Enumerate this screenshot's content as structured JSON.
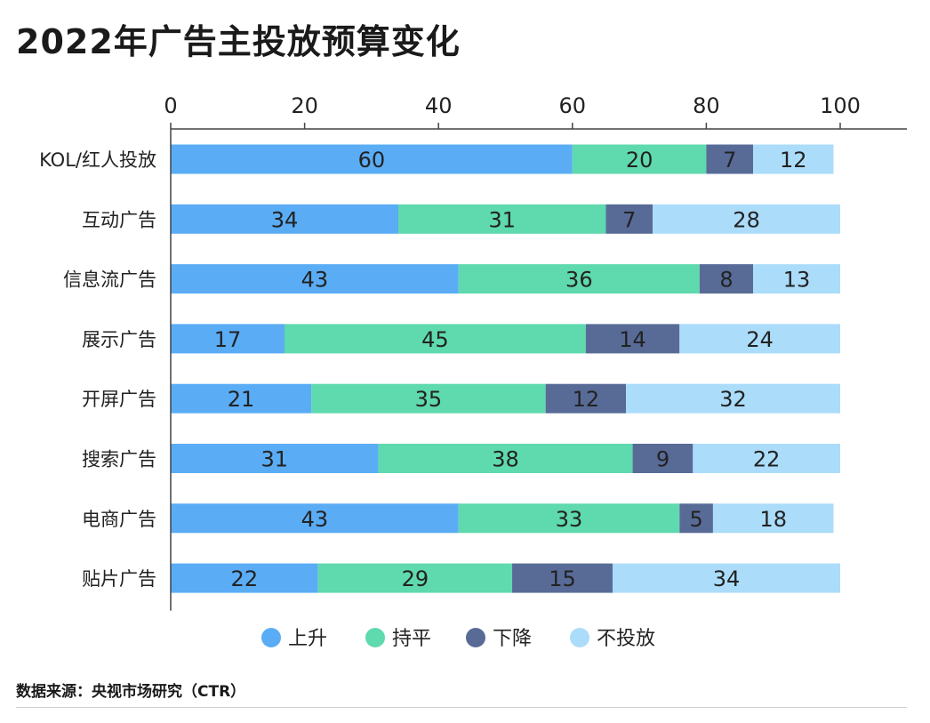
{
  "title": "2022年广告主投放预算变化",
  "source": "数据来源：央视市场研究（CTR）",
  "colors": {
    "上升": "#5aacf5",
    "持平": "#5fd9ae",
    "下降": "#586b97",
    "不投放": "#abdcfa",
    "axis": "#444444",
    "text": "#222222"
  },
  "chart_data": {
    "type": "bar",
    "orientation": "horizontal",
    "stacked": true,
    "categories": [
      "KOL/红人投放",
      "互动广告",
      "信息流广告",
      "展示广告",
      "开屏广告",
      "搜索广告",
      "电商广告",
      "贴片广告"
    ],
    "series": [
      {
        "name": "上升",
        "values": [
          60,
          34,
          43,
          17,
          21,
          31,
          43,
          22
        ]
      },
      {
        "name": "持平",
        "values": [
          20,
          31,
          36,
          45,
          35,
          38,
          33,
          29
        ]
      },
      {
        "name": "下降",
        "values": [
          7,
          7,
          8,
          14,
          12,
          9,
          5,
          15
        ]
      },
      {
        "name": "不投放",
        "values": [
          12,
          28,
          13,
          24,
          32,
          22,
          18,
          34
        ]
      }
    ],
    "x_ticks": [
      "0",
      "20",
      "40",
      "60",
      "80",
      "100"
    ],
    "xlim": [
      0,
      110
    ],
    "xaxis_position": "top",
    "legend_position": "bottom",
    "grid": false,
    "data_labels": true
  }
}
